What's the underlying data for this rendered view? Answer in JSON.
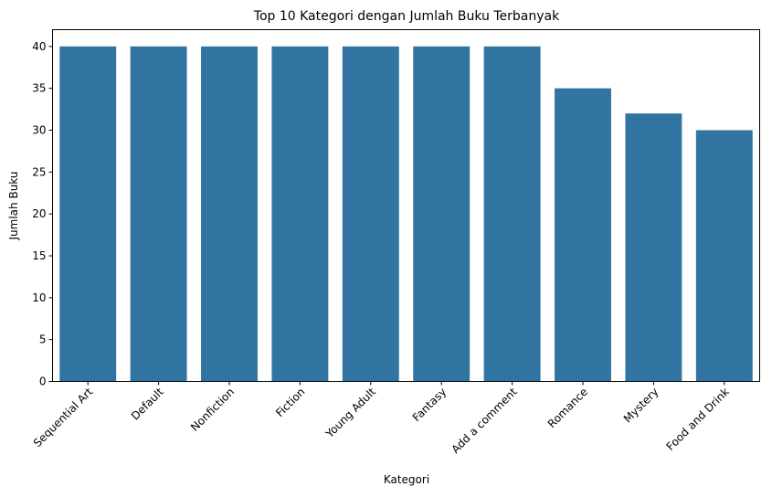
{
  "chart_data": {
    "type": "bar",
    "title": "Top 10 Kategori dengan Jumlah Buku Terbanyak",
    "xlabel": "Kategori",
    "ylabel": "Jumlah Buku",
    "categories": [
      "Sequential Art",
      "Default",
      "Nonfiction",
      "Fiction",
      "Young Adult",
      "Fantasy",
      "Add a comment",
      "Romance",
      "Mystery",
      "Food and Drink"
    ],
    "values": [
      40,
      40,
      40,
      40,
      40,
      40,
      40,
      35,
      32,
      30
    ],
    "ylim": [
      0,
      42
    ],
    "yticks": [
      0,
      5,
      10,
      15,
      20,
      25,
      30,
      35,
      40
    ],
    "grid": false,
    "bar_color": "#3274a1"
  }
}
